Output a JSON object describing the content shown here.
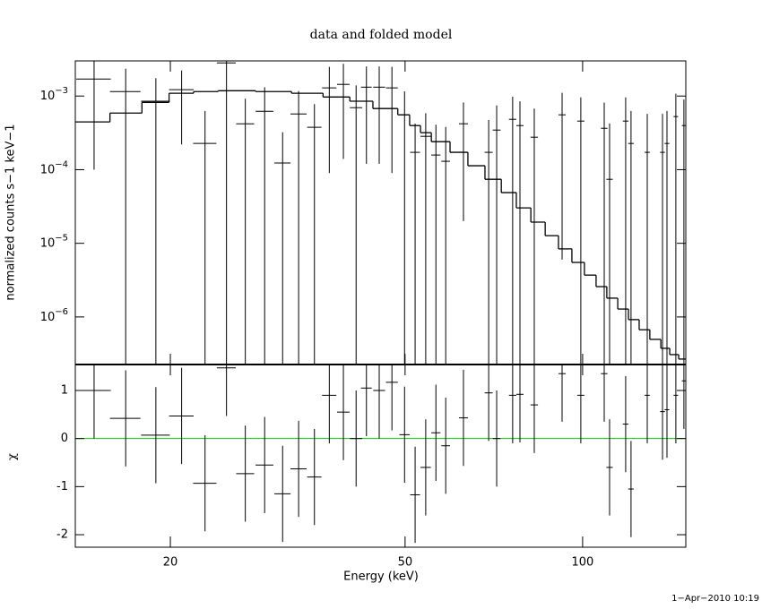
{
  "chart_data": [
    {
      "type": "errorbar",
      "title": "data and folded model",
      "ylabel": "normalized counts s−1 keV−1",
      "xscale": "log",
      "yscale": "log",
      "xlim": [
        13.8,
        149.6
      ],
      "ylim": [
        2.26e-07,
        0.003
      ],
      "yticks": [
        {
          "value": 0.001,
          "label": "10−3"
        },
        {
          "value": 0.0001,
          "label": "10−4"
        },
        {
          "value": 1e-05,
          "label": "10−5"
        },
        {
          "value": 1e-06,
          "label": "10−6"
        }
      ],
      "data": {
        "color": "#000000",
        "x": [
          14.85,
          16.8,
          18.9,
          20.9,
          22.9,
          24.9,
          26.8,
          28.9,
          31.0,
          33.0,
          35.1,
          37.2,
          39.3,
          41.3,
          43.0,
          45.2,
          47.5,
          49.9,
          52.0,
          54.2,
          56.4,
          58.6,
          62.8,
          69.3,
          71.5,
          76.1,
          78.3,
          82.8,
          92.3,
          99.3,
          108.8,
          111.1,
          118.3,
          120.8,
          128.7,
          136.6,
          139.0,
          143.9,
          148.5
        ],
        "xerr": [
          1.0,
          1.0,
          1.06,
          1.0,
          1.04,
          0.92,
          0.94,
          1.0,
          0.98,
          1.04,
          0.98,
          1.04,
          0.96,
          1.0,
          0.9,
          1.05,
          1.1,
          1.0,
          1.0,
          1.1,
          1.0,
          1.0,
          1.1,
          1.1,
          1.1,
          1.1,
          1.1,
          1.2,
          1.3,
          1.4,
          1.4,
          1.4,
          1.3,
          1.3,
          1.3,
          1.3,
          1.3,
          1.3,
          1.2
        ],
        "values": [
          0.0017,
          0.00115,
          0.00085,
          0.00122,
          0.000227,
          0.00282,
          0.00042,
          0.00062,
          0.000123,
          0.00057,
          0.000376,
          0.00129,
          0.00144,
          0.000695,
          0.00132,
          0.00132,
          0.00129,
          0.000556,
          0.000172,
          0.000284,
          0.000158,
          0.00013,
          0.00042,
          0.000172,
          0.000345,
          0.000483,
          0.000397,
          0.000276,
          0.000556,
          0.000457,
          0.000365,
          7.4e-05,
          0.000457,
          0.000227,
          0.000172,
          0.000172,
          0.000227,
          0.000526,
          0.000397
        ],
        "yerr": [
          0.0016,
          0.0012,
          0.0009,
          0.001,
          0.0004,
          0.003,
          0.0005,
          0.0007,
          0.0002,
          0.0006,
          0.0004,
          0.0012,
          0.0013,
          0.0007,
          0.0012,
          0.0012,
          0.0012,
          0.0006,
          0.00025,
          0.0003,
          0.00025,
          0.00025,
          0.0004,
          0.0003,
          0.0004,
          0.0005,
          0.00045,
          0.0004,
          0.00055,
          0.0005,
          0.00045,
          0.00035,
          0.0005,
          0.0004,
          0.0004,
          0.0004,
          0.0004,
          0.00055,
          0.0005
        ]
      },
      "model": {
        "color": "#000000",
        "bins": [
          13.8,
          15.8,
          17.9,
          19.9,
          21.9,
          24.1,
          27.9,
          32.1,
          36.3,
          40.3,
          44.1,
          48.6,
          50.9,
          53.1,
          55.4,
          59.6,
          63.9,
          68.3,
          72.8,
          77.2,
          81.7,
          86.4,
          91.0,
          95.9,
          100.7,
          105.4,
          109.9,
          114.7,
          119.6,
          124.7,
          130.0,
          135.7,
          140.5,
          145.5,
          149.6
        ],
        "values": [
          0.000445,
          0.000587,
          0.00082,
          0.00109,
          0.00115,
          0.00118,
          0.00115,
          0.00109,
          0.00097,
          0.00085,
          0.000676,
          0.000556,
          0.000397,
          0.000318,
          0.00024,
          0.000172,
          0.000113,
          7.4e-05,
          4.88e-05,
          3.03e-05,
          1.94e-05,
          1.27e-05,
          8.4e-06,
          5.5e-06,
          3.7e-06,
          2.58e-06,
          1.8e-06,
          1.28e-06,
          9.2e-07,
          6.7e-07,
          4.96e-07,
          3.75e-07,
          3.08e-07,
          2.68e-07
        ]
      }
    },
    {
      "type": "errorbar",
      "ylabel": "χ",
      "xlabel": "Energy (keV)",
      "xscale": "log",
      "xlim": [
        13.8,
        149.6
      ],
      "ylim": [
        -2.26,
        1.54
      ],
      "xticks": [
        20,
        50,
        100
      ],
      "yticks": [
        -2,
        -1,
        0,
        1
      ],
      "reference_line": {
        "value": 0,
        "color": "#00cc00"
      },
      "data": {
        "color": "#000000",
        "x": [
          14.85,
          16.8,
          18.9,
          20.9,
          22.9,
          24.9,
          26.8,
          28.9,
          31.0,
          33.0,
          35.1,
          37.2,
          39.3,
          41.3,
          43.0,
          45.2,
          47.5,
          49.9,
          52.0,
          54.2,
          56.4,
          58.6,
          62.8,
          69.3,
          71.5,
          76.1,
          78.3,
          82.8,
          92.3,
          99.3,
          108.8,
          111.1,
          118.3,
          120.8,
          128.7,
          136.6,
          139.0,
          143.9,
          148.5
        ],
        "xerr": [
          1.0,
          1.0,
          1.06,
          1.0,
          1.04,
          0.92,
          0.94,
          1.0,
          0.98,
          1.04,
          0.98,
          1.04,
          0.96,
          1.0,
          0.9,
          1.05,
          1.1,
          1.0,
          1.0,
          1.1,
          1.0,
          1.0,
          1.1,
          1.1,
          1.1,
          1.1,
          1.1,
          1.2,
          1.3,
          1.4,
          1.4,
          1.4,
          1.3,
          1.3,
          1.3,
          1.3,
          1.3,
          1.3,
          1.2
        ],
        "values": [
          1.0,
          0.42,
          0.07,
          0.47,
          -0.93,
          1.47,
          -0.73,
          -0.55,
          -1.15,
          -0.63,
          -0.8,
          0.9,
          0.55,
          0.0,
          1.05,
          1.0,
          1.17,
          0.08,
          -1.17,
          -0.6,
          0.12,
          -0.15,
          0.43,
          0.95,
          0.0,
          0.9,
          0.92,
          0.7,
          1.35,
          0.9,
          1.35,
          -0.6,
          0.3,
          -1.05,
          0.9,
          0.56,
          0.6,
          0.9,
          1.2
        ],
        "yerr": [
          1,
          1,
          1,
          1,
          1,
          1,
          1,
          1,
          1,
          1,
          1,
          1,
          1,
          1,
          1,
          1,
          1,
          1,
          1,
          1,
          1,
          1,
          1,
          1,
          1,
          1,
          1,
          1,
          1,
          1,
          1,
          1,
          1,
          1,
          1,
          1,
          1,
          1,
          1
        ]
      }
    }
  ],
  "timestamp": "1−Apr−2010 10:19"
}
